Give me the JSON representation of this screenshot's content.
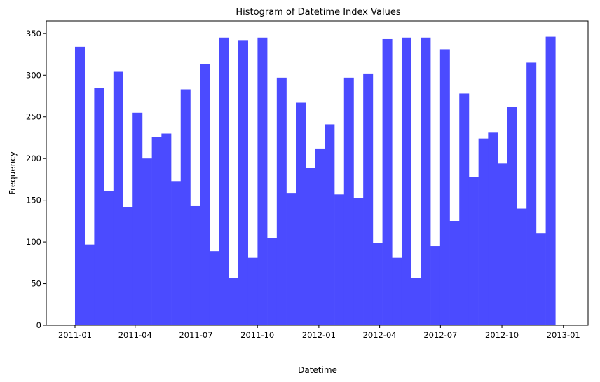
{
  "chart_data": {
    "type": "bar",
    "title": "Histogram of Datetime Index Values",
    "xlabel": "Datetime",
    "ylabel": "Frequency",
    "x_ticks": [
      "2011-01",
      "2011-04",
      "2011-07",
      "2011-10",
      "2012-01",
      "2012-04",
      "2012-07",
      "2012-10",
      "2013-01"
    ],
    "y_ticks": [
      0,
      50,
      100,
      150,
      200,
      250,
      300,
      350
    ],
    "xlim": [
      "2010-11-19",
      "2013-02-07"
    ],
    "ylim": [
      0,
      365
    ],
    "bins_start": "2011-01-01",
    "bins_end": "2012-12-20",
    "bar_color": "#4b4bff",
    "values": [
      334,
      97,
      285,
      161,
      304,
      142,
      255,
      200,
      226,
      230,
      173,
      283,
      143,
      313,
      89,
      345,
      57,
      342,
      81,
      345,
      105,
      297,
      158,
      267,
      189,
      212,
      241,
      157,
      297,
      153,
      302,
      99,
      344,
      81,
      345,
      57,
      345,
      95,
      331,
      125,
      278,
      178,
      224,
      231,
      194,
      262,
      140,
      315,
      110,
      346
    ]
  }
}
